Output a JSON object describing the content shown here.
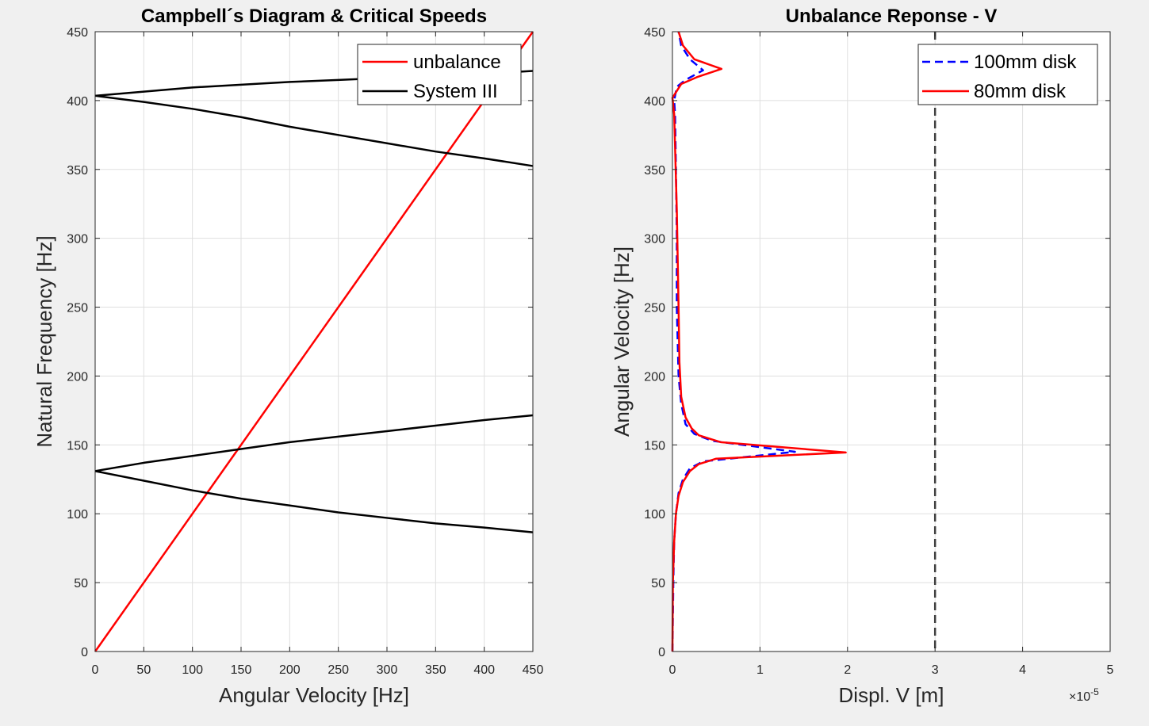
{
  "figure": {
    "background": "#f0f0f0"
  },
  "chart_data": [
    {
      "type": "line",
      "title": "Campbell´s Diagram & Critical Speeds",
      "xlabel": "Angular Velocity [Hz]",
      "ylabel": "Natural Frequency [Hz]",
      "xlim": [
        0,
        450
      ],
      "ylim": [
        0,
        450
      ],
      "xticks": [
        0,
        50,
        100,
        150,
        200,
        250,
        300,
        350,
        400,
        450
      ],
      "yticks": [
        0,
        50,
        100,
        150,
        200,
        250,
        300,
        350,
        400,
        450
      ],
      "grid": true,
      "legend": {
        "placement": "top-right",
        "entries": [
          {
            "label": "unbalance",
            "color": "#ff0000",
            "style": "solid"
          },
          {
            "label": "System III",
            "color": "#000000",
            "style": "solid"
          }
        ]
      },
      "series": [
        {
          "name": "unbalance",
          "color": "#ff0000",
          "style": "solid",
          "x": [
            0,
            450
          ],
          "y": [
            0,
            450
          ]
        },
        {
          "name": "System III",
          "color": "#000000",
          "style": "solid",
          "x": [
            0,
            50,
            100,
            150,
            200,
            250,
            300,
            350,
            400,
            450
          ],
          "y": [
            131,
            137,
            142,
            147,
            152,
            156,
            160,
            164,
            168,
            171.5
          ]
        },
        {
          "color": "#000000",
          "style": "solid",
          "x": [
            0,
            50,
            100,
            150,
            200,
            250,
            300,
            350,
            400,
            450
          ],
          "y": [
            131,
            124,
            117,
            111,
            106,
            101,
            97,
            93,
            90,
            86.5
          ]
        },
        {
          "color": "#000000",
          "style": "solid",
          "x": [
            0,
            50,
            100,
            150,
            200,
            250,
            300,
            350,
            400,
            450
          ],
          "y": [
            403.5,
            406.5,
            409.5,
            411.5,
            413.5,
            415,
            416.5,
            418,
            419.5,
            421.5
          ]
        },
        {
          "color": "#000000",
          "style": "solid",
          "x": [
            0,
            50,
            100,
            150,
            200,
            250,
            300,
            350,
            400,
            450
          ],
          "y": [
            403.5,
            399,
            394,
            388,
            381,
            375,
            369,
            363,
            358,
            352.5
          ]
        }
      ]
    },
    {
      "type": "line",
      "title": "Unbalance Reponse - V",
      "xlabel": "Displ. V [m]",
      "ylabel": "Angular Velocity [Hz]",
      "x_exponent": "-5",
      "xlim": [
        0,
        5
      ],
      "ylim": [
        0,
        450
      ],
      "xticks": [
        0,
        1,
        2,
        3,
        4,
        5
      ],
      "yticks": [
        0,
        50,
        100,
        150,
        200,
        250,
        300,
        350,
        400,
        450
      ],
      "grid": true,
      "reference_line": {
        "x": 3,
        "color": "#404040",
        "style": "dashed"
      },
      "legend": {
        "placement": "top-right",
        "entries": [
          {
            "label": "100mm disk",
            "color": "#0000ff",
            "style": "dashed"
          },
          {
            "label": "80mm disk",
            "color": "#ff0000",
            "style": "solid"
          }
        ]
      },
      "series": [
        {
          "name": "100mm disk",
          "color": "#0000ff",
          "style": "dashed",
          "x": [
            0,
            0.01,
            0.02,
            0.04,
            0.07,
            0.12,
            0.2,
            0.35,
            1.4,
            0.45,
            0.25,
            0.15,
            0.1,
            0.07,
            0.05,
            0.05,
            0.04,
            0.03,
            0.02,
            0.05,
            0.15,
            0.35,
            0.2,
            0.1,
            0.07
          ],
          "y": [
            0,
            50,
            80,
            100,
            115,
            125,
            133,
            138,
            145,
            153,
            158,
            165,
            180,
            200,
            250,
            300,
            350,
            390,
            400,
            410,
            415,
            422,
            430,
            440,
            450
          ]
        },
        {
          "name": "80mm disk",
          "color": "#ff0000",
          "style": "solid",
          "x": [
            0,
            0.005,
            0.02,
            0.04,
            0.07,
            0.12,
            0.2,
            0.3,
            0.5,
            1.98,
            0.55,
            0.3,
            0.22,
            0.15,
            0.1,
            0.08,
            0.07,
            0.05,
            0.02,
            0,
            0.1,
            0.28,
            0.56,
            0.25,
            0.12,
            0.07
          ],
          "y": [
            0,
            50,
            80,
            100,
            113,
            123,
            131,
            136,
            140,
            144.5,
            152,
            157,
            162,
            170,
            185,
            210,
            250,
            320,
            390,
            402,
            412,
            417,
            423,
            430,
            440,
            450
          ]
        }
      ]
    }
  ]
}
